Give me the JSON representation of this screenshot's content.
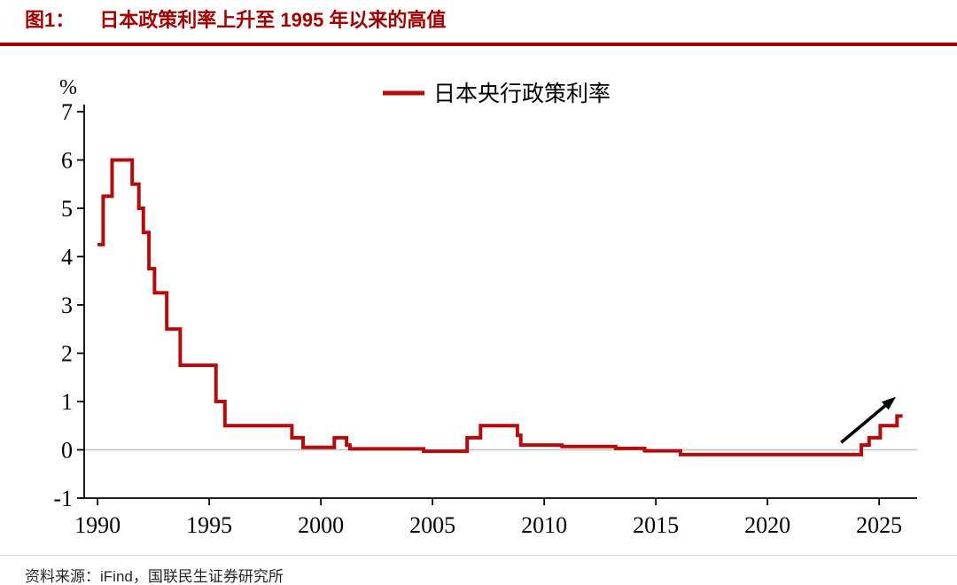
{
  "header": {
    "figure_label": "图1：",
    "title": "日本政策利率上升至 1995 年以来的高值"
  },
  "footer": {
    "source": "资料来源：iFind，国联民生证券研究所"
  },
  "colors": {
    "accent": "#A00000",
    "series_line": "#B40B0D",
    "zero_gridline": "#BFBFBF",
    "axis": "#000000",
    "arrow": "#000000"
  },
  "chart_data": {
    "type": "line",
    "step": true,
    "title": "日本政策利率上升至 1995 年以来的高值",
    "xlabel": "",
    "ylabel": "%",
    "legend_position": "top-center",
    "legend": [
      {
        "label": "日本央行政策利率",
        "color": "#B40B0D"
      }
    ],
    "xlim": [
      1989.4,
      2026.7
    ],
    "ylim": [
      -1,
      7
    ],
    "xticks": [
      1990,
      1995,
      2000,
      2005,
      2010,
      2015,
      2020,
      2025
    ],
    "yticks": [
      -1,
      0,
      1,
      2,
      3,
      4,
      5,
      6,
      7
    ],
    "grid": "zero-line-only",
    "series": [
      {
        "name": "日本央行政策利率",
        "unit": "%",
        "points": [
          [
            1990.0,
            4.25
          ],
          [
            1990.25,
            5.25
          ],
          [
            1990.65,
            6.0
          ],
          [
            1991.55,
            5.5
          ],
          [
            1991.85,
            5.0
          ],
          [
            1992.05,
            4.5
          ],
          [
            1992.3,
            3.75
          ],
          [
            1992.55,
            3.25
          ],
          [
            1993.1,
            2.5
          ],
          [
            1993.7,
            1.75
          ],
          [
            1995.3,
            1.0
          ],
          [
            1995.7,
            0.5
          ],
          [
            1998.7,
            0.25
          ],
          [
            1999.2,
            0.05
          ],
          [
            2000.6,
            0.25
          ],
          [
            2001.15,
            0.1
          ],
          [
            2001.3,
            0.02
          ],
          [
            2004.6,
            -0.03
          ],
          [
            2006.55,
            0.25
          ],
          [
            2007.15,
            0.5
          ],
          [
            2008.8,
            0.3
          ],
          [
            2008.95,
            0.1
          ],
          [
            2010.8,
            0.07
          ],
          [
            2013.2,
            0.03
          ],
          [
            2014.5,
            -0.02
          ],
          [
            2016.1,
            -0.1
          ],
          [
            2024.2,
            0.1
          ],
          [
            2024.55,
            0.25
          ],
          [
            2025.05,
            0.5
          ],
          [
            2025.8,
            0.7
          ],
          [
            2026.05,
            0.7
          ]
        ]
      }
    ],
    "annotations": [
      {
        "type": "arrow",
        "from": [
          2023.3,
          0.15
        ],
        "to": [
          2025.75,
          1.1
        ],
        "color": "#000000"
      }
    ]
  }
}
